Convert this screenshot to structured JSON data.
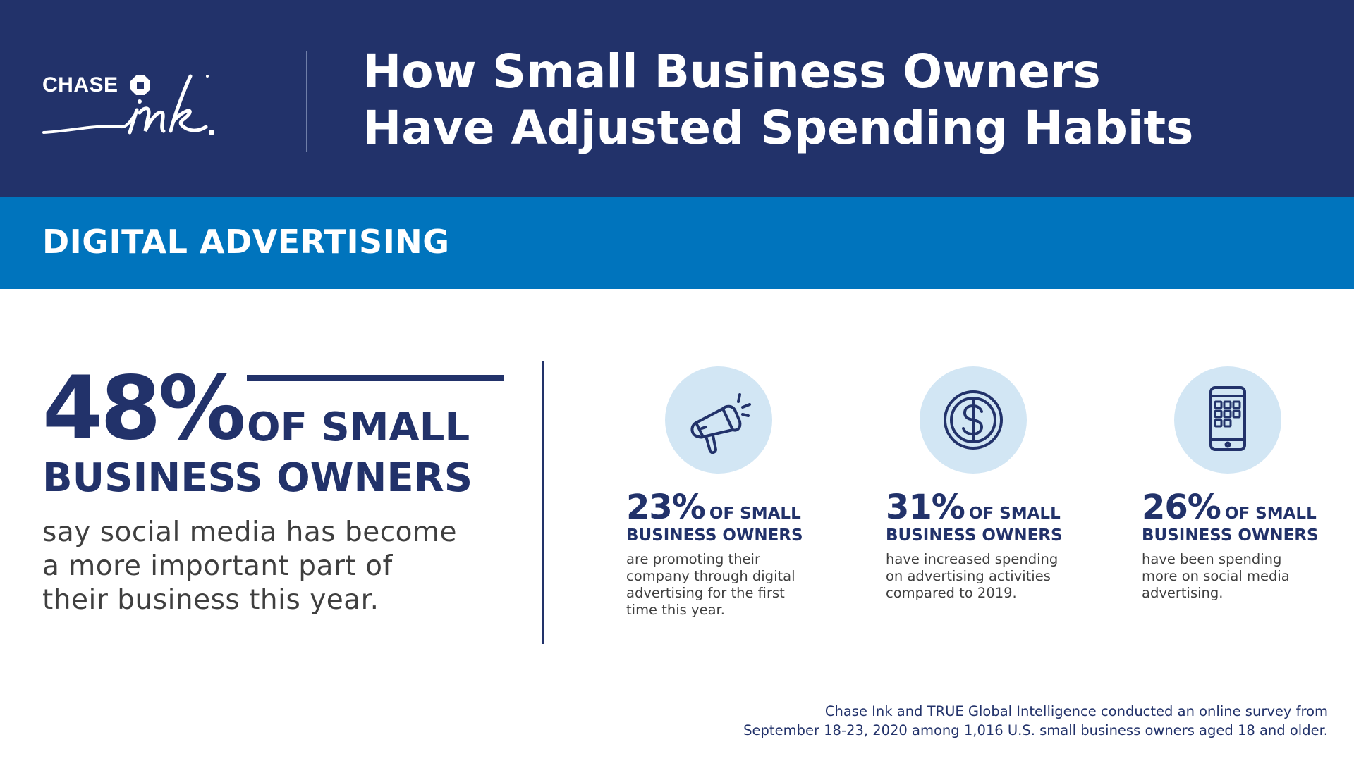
{
  "header": {
    "brand": "CHASE",
    "brand_script": "ink",
    "title_line1": "How Small Business Owners",
    "title_line2": "Have Adjusted Spending Habits"
  },
  "section": {
    "title": "DIGITAL ADVERTISING"
  },
  "main_stat": {
    "percent": "48%",
    "of_label": "OF SMALL",
    "owners_label": "BUSINESS OWNERS",
    "description_line1": "say social media has become",
    "description_line2": "a more important part of",
    "description_line3": "their business this year."
  },
  "stats": [
    {
      "icon": "megaphone-icon",
      "percent": "23%",
      "of_label": "OF SMALL",
      "owners_label": "BUSINESS OWNERS",
      "description_line1": "are promoting their",
      "description_line2": "company through digital",
      "description_line3": "advertising for the first",
      "description_line4": "time this year."
    },
    {
      "icon": "dollar-coin-icon",
      "percent": "31%",
      "of_label": "OF SMALL",
      "owners_label": "BUSINESS OWNERS",
      "description_line1": "have increased spending",
      "description_line2": "on advertising activities",
      "description_line3": "compared to 2019."
    },
    {
      "icon": "smartphone-icon",
      "percent": "26%",
      "of_label": "OF SMALL",
      "owners_label": "BUSINESS OWNERS",
      "description_line1": "have been spending",
      "description_line2": "more on social media",
      "description_line3": "advertising."
    }
  ],
  "footnote": {
    "line1": "Chase Ink and TRUE Global Intelligence conducted an online survey from",
    "line2": "September 18-23, 2020 among 1,016 U.S. small business owners aged 18 and older."
  },
  "colors": {
    "navy": "#22326a",
    "blue": "#0074bd",
    "icon_bg": "#d2e6f4",
    "text_gray": "#3f3f3f"
  }
}
